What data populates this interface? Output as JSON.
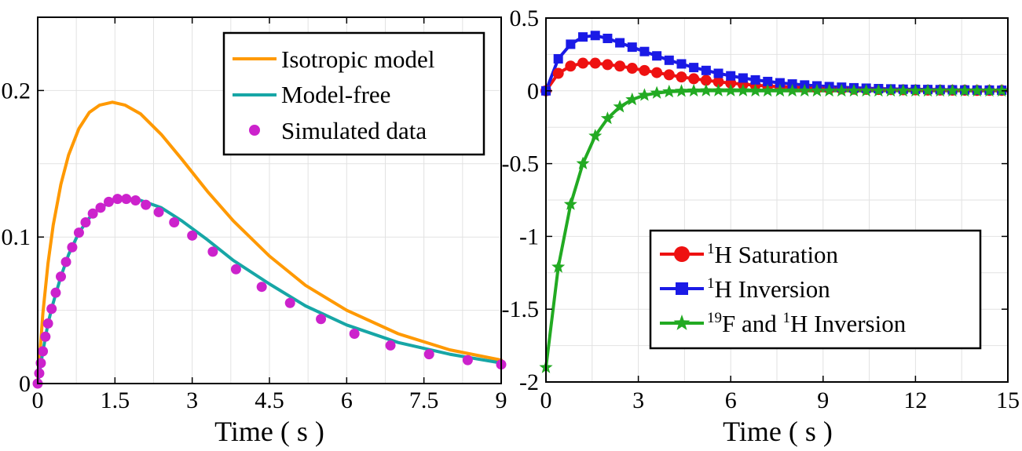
{
  "chart_data": [
    {
      "type": "line",
      "xlabel": "Time ( s )",
      "ylabel": "",
      "xlim": [
        0,
        9
      ],
      "ylim": [
        0,
        0.25
      ],
      "xticks": [
        "0",
        "1.5",
        "3",
        "4.5",
        "6",
        "7.5",
        "9"
      ],
      "yticks": [
        "0",
        "0.1",
        "0.2"
      ],
      "grid": true,
      "legend_position": "top-right",
      "series": [
        {
          "name": "Isotropic model",
          "style": "line",
          "color": "#ff9900",
          "x": [
            0,
            0.1,
            0.2,
            0.3,
            0.45,
            0.6,
            0.8,
            1.0,
            1.2,
            1.45,
            1.7,
            2.0,
            2.4,
            2.8,
            3.3,
            3.8,
            4.5,
            5.2,
            6.0,
            7.0,
            8.0,
            9.0
          ],
          "y": [
            0,
            0.048,
            0.082,
            0.108,
            0.136,
            0.156,
            0.174,
            0.185,
            0.19,
            0.192,
            0.19,
            0.184,
            0.17,
            0.153,
            0.131,
            0.111,
            0.087,
            0.067,
            0.05,
            0.034,
            0.023,
            0.016
          ]
        },
        {
          "name": "Model-free",
          "style": "line",
          "color": "#17a6a6",
          "x": [
            0,
            0.1,
            0.2,
            0.3,
            0.45,
            0.6,
            0.8,
            1.0,
            1.2,
            1.5,
            1.75,
            2.0,
            2.4,
            2.8,
            3.3,
            3.8,
            4.5,
            5.2,
            6.0,
            7.0,
            8.0,
            9.0
          ],
          "y": [
            0,
            0.022,
            0.041,
            0.055,
            0.073,
            0.088,
            0.103,
            0.113,
            0.12,
            0.125,
            0.126,
            0.125,
            0.12,
            0.111,
            0.098,
            0.084,
            0.068,
            0.053,
            0.04,
            0.028,
            0.02,
            0.014
          ]
        },
        {
          "name": "Simulated data",
          "style": "markers",
          "color": "#cc22cc",
          "x": [
            0,
            0.03,
            0.06,
            0.1,
            0.15,
            0.2,
            0.27,
            0.35,
            0.45,
            0.55,
            0.67,
            0.8,
            0.93,
            1.07,
            1.22,
            1.38,
            1.55,
            1.72,
            1.9,
            2.1,
            2.35,
            2.65,
            3.0,
            3.4,
            3.85,
            4.35,
            4.9,
            5.5,
            6.15,
            6.85,
            7.6,
            8.35,
            9.0
          ],
          "y": [
            0,
            0.007,
            0.014,
            0.022,
            0.032,
            0.041,
            0.051,
            0.062,
            0.073,
            0.083,
            0.093,
            0.103,
            0.11,
            0.116,
            0.12,
            0.124,
            0.126,
            0.126,
            0.125,
            0.122,
            0.117,
            0.11,
            0.101,
            0.09,
            0.078,
            0.066,
            0.055,
            0.044,
            0.034,
            0.026,
            0.02,
            0.016,
            0.013
          ]
        }
      ]
    },
    {
      "type": "line",
      "xlabel": "Time ( s )",
      "ylabel": "",
      "xlim": [
        0,
        15
      ],
      "ylim": [
        -2,
        0.5
      ],
      "xticks": [
        "0",
        "3",
        "6",
        "9",
        "12",
        "15"
      ],
      "yticks": [
        "0.5",
        "0",
        "-0.5",
        "-1",
        "-1.5",
        "-2"
      ],
      "grid": true,
      "legend_position": "bottom-right",
      "series": [
        {
          "name": "1H Saturation",
          "legend_sup": "1",
          "legend_main": "H Saturation",
          "marker": "circle",
          "color": "#ee1111",
          "x": [
            0,
            0.4,
            0.8,
            1.2,
            1.6,
            2.0,
            2.4,
            2.8,
            3.2,
            3.6,
            4.0,
            4.4,
            4.8,
            5.2,
            5.6,
            6.0,
            6.4,
            6.8,
            7.2,
            7.6,
            8.0,
            8.4,
            8.8,
            9.2,
            9.6,
            10.0,
            10.4,
            10.8,
            11.2,
            11.6,
            12.0,
            12.4,
            12.8,
            13.2,
            13.6,
            14.0,
            14.4,
            14.8
          ],
          "y": [
            0,
            0.12,
            0.17,
            0.19,
            0.19,
            0.18,
            0.17,
            0.155,
            0.14,
            0.125,
            0.11,
            0.095,
            0.083,
            0.072,
            0.062,
            0.053,
            0.045,
            0.039,
            0.033,
            0.028,
            0.024,
            0.021,
            0.018,
            0.015,
            0.013,
            0.011,
            0.01,
            0.009,
            0.008,
            0.007,
            0.006,
            0.005,
            0.005,
            0.004,
            0.004,
            0.003,
            0.003,
            0.003
          ]
        },
        {
          "name": "1H Inversion",
          "legend_sup": "1",
          "legend_main": "H Inversion",
          "marker": "square",
          "color": "#1a1ae6",
          "x": [
            0,
            0.4,
            0.8,
            1.2,
            1.6,
            2.0,
            2.4,
            2.8,
            3.2,
            3.6,
            4.0,
            4.4,
            4.8,
            5.2,
            5.6,
            6.0,
            6.4,
            6.8,
            7.2,
            7.6,
            8.0,
            8.4,
            8.8,
            9.2,
            9.6,
            10.0,
            10.4,
            10.8,
            11.2,
            11.6,
            12.0,
            12.4,
            12.8,
            13.2,
            13.6,
            14.0,
            14.4,
            14.8
          ],
          "y": [
            0,
            0.22,
            0.32,
            0.37,
            0.38,
            0.36,
            0.33,
            0.3,
            0.27,
            0.24,
            0.21,
            0.185,
            0.16,
            0.14,
            0.12,
            0.103,
            0.088,
            0.075,
            0.064,
            0.055,
            0.047,
            0.04,
            0.034,
            0.029,
            0.025,
            0.021,
            0.018,
            0.015,
            0.013,
            0.011,
            0.01,
            0.009,
            0.008,
            0.007,
            0.006,
            0.005,
            0.005,
            0.004
          ]
        },
        {
          "name": "19F and 1H Inversion",
          "legend_sup": "19",
          "legend_mid": "F and ",
          "legend_sup2": "1",
          "legend_main": "H Inversion",
          "marker": "star",
          "color": "#22aa22",
          "x": [
            0,
            0.4,
            0.8,
            1.2,
            1.6,
            2.0,
            2.4,
            2.8,
            3.2,
            3.6,
            4.0,
            4.4,
            4.8,
            5.2,
            5.6,
            6.0,
            6.4,
            6.8,
            7.2,
            7.6,
            8.0,
            8.4,
            8.8,
            9.2,
            9.6,
            10.0,
            10.4,
            10.8,
            11.2,
            11.6,
            12.0,
            12.4,
            12.8,
            13.2,
            13.6,
            14.0,
            14.4,
            14.8
          ],
          "y": [
            -1.9,
            -1.21,
            -0.78,
            -0.5,
            -0.31,
            -0.19,
            -0.11,
            -0.06,
            -0.03,
            -0.015,
            -0.006,
            -0.002,
            0,
            0.001,
            0.001,
            0.001,
            0.001,
            0,
            0,
            0,
            0,
            0,
            0,
            0,
            0,
            0,
            0,
            0,
            0,
            0,
            0,
            0,
            0,
            0,
            0,
            0,
            0,
            0
          ]
        }
      ]
    }
  ]
}
